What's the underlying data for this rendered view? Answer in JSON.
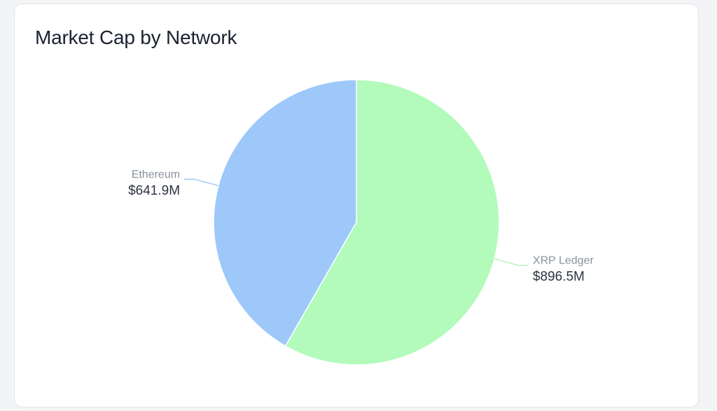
{
  "card": {
    "title": "Market Cap by Network"
  },
  "chart_data": {
    "type": "pie",
    "title": "Market Cap by Network",
    "unit": "$M",
    "slices": [
      {
        "label": "XRP Ledger",
        "value": 896.5,
        "value_label": "$896.5M",
        "color": "#b2fbbb"
      },
      {
        "label": "Ethereum",
        "value": 641.9,
        "value_label": "$641.9M",
        "color": "#9ec8fa"
      }
    ],
    "start_angle_deg": 0,
    "direction": "clockwise",
    "label_placement": "outside-with-leader-lines"
  },
  "colors": {
    "xrp_leader": "#a7f0b0",
    "ethereum_leader": "#8ebdf5",
    "title": "#1b2130"
  }
}
